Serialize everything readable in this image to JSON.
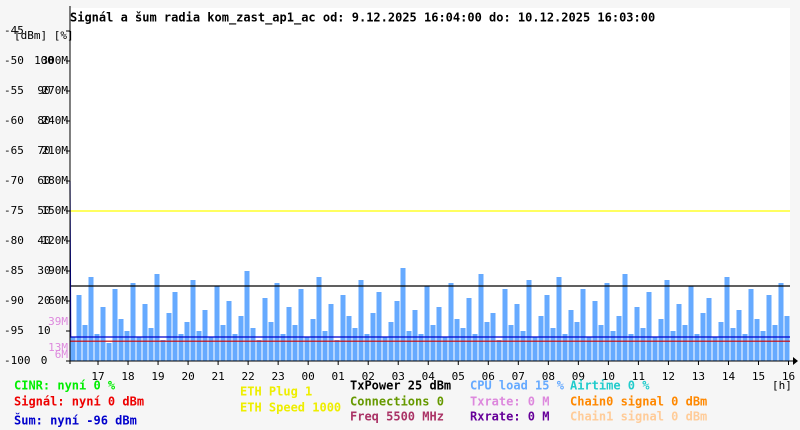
{
  "chart_data": {
    "type": "line",
    "title": "Signál a šum radia kom_zast_ap1_ac od: 9.12.2025 16:04:00 do: 10.12.2025 16:03:00",
    "y_axis_label": "[dBm] [%]",
    "x_axis_label": "[h]",
    "ylim": [
      -100,
      -45
    ],
    "yticks": [
      -100,
      -95,
      -90,
      -85,
      -80,
      -75,
      -70,
      -65,
      -60,
      -55,
      -50,
      -45
    ],
    "y2lim": [
      0,
      110
    ],
    "y2ticks": [
      0,
      10,
      20,
      30,
      40,
      50,
      60,
      70,
      80,
      90,
      100
    ],
    "y3lim": [
      0,
      330
    ],
    "y3ticks": [
      {
        "value": 60,
        "label": "60M"
      },
      {
        "value": 90,
        "label": "90M"
      },
      {
        "value": 120,
        "label": "120M"
      },
      {
        "value": 150,
        "label": "150M"
      },
      {
        "value": 180,
        "label": "180M"
      },
      {
        "value": 210,
        "label": "210M"
      },
      {
        "value": 240,
        "label": "240M"
      },
      {
        "value": 270,
        "label": "270M"
      },
      {
        "value": 300,
        "label": "300M"
      }
    ],
    "y3_markers": {
      "color": "#dd88dd",
      "ticks": [
        {
          "value": 39,
          "label": "39M"
        },
        {
          "value": 13,
          "label": "13M"
        },
        {
          "value": 6,
          "label": "6M"
        }
      ]
    },
    "xlim": [
      16.0667,
      40.05
    ],
    "xticks": [
      {
        "value": 17,
        "label": "17"
      },
      {
        "value": 18,
        "label": "18"
      },
      {
        "value": 19,
        "label": "19"
      },
      {
        "value": 20,
        "label": "20"
      },
      {
        "value": 21,
        "label": "21"
      },
      {
        "value": 22,
        "label": "22"
      },
      {
        "value": 23,
        "label": "23"
      },
      {
        "value": 24,
        "label": "00"
      },
      {
        "value": 25,
        "label": "01"
      },
      {
        "value": 26,
        "label": "02"
      },
      {
        "value": 27,
        "label": "03"
      },
      {
        "value": 28,
        "label": "04"
      },
      {
        "value": 29,
        "label": "05"
      },
      {
        "value": 30,
        "label": "06"
      },
      {
        "value": 31,
        "label": "07"
      },
      {
        "value": 32,
        "label": "08"
      },
      {
        "value": 33,
        "label": "09"
      },
      {
        "value": 34,
        "label": "10"
      },
      {
        "value": 35,
        "label": "11"
      },
      {
        "value": 36,
        "label": "12"
      },
      {
        "value": 37,
        "label": "13"
      },
      {
        "value": 38,
        "label": "14"
      },
      {
        "value": 39,
        "label": "15"
      },
      {
        "value": 40,
        "label": "16"
      }
    ],
    "cpu_bars": {
      "color": "#66aaff",
      "axis": "y2",
      "values": [
        8,
        22,
        12,
        28,
        9,
        18,
        6,
        24,
        14,
        10,
        26,
        8,
        19,
        11,
        29,
        7,
        16,
        23,
        9,
        13,
        27,
        10,
        17,
        8,
        25,
        12,
        20,
        9,
        15,
        30,
        11,
        7,
        21,
        13,
        26,
        9,
        18,
        12,
        24,
        8,
        14,
        28,
        10,
        19,
        7,
        22,
        15,
        11,
        27,
        9,
        16,
        23,
        8,
        13,
        20,
        31,
        10,
        17,
        9,
        25,
        12,
        18,
        8,
        26,
        14,
        11,
        21,
        9,
        29,
        13,
        16,
        7,
        24,
        12,
        19,
        10,
        27,
        8,
        15,
        22,
        11,
        28,
        9,
        17,
        13,
        24,
        8,
        20,
        12,
        26,
        10,
        15,
        29,
        9,
        18,
        11,
        23,
        8,
        14,
        27,
        10,
        19,
        12,
        25,
        9,
        16,
        21,
        8,
        13,
        28,
        11,
        17,
        9,
        24,
        14,
        10,
        22,
        12,
        26,
        15
      ]
    },
    "series": [
      {
        "color": "#ffff00",
        "axis": "y3",
        "x": [
          16.0667,
          40.05
        ],
        "values": [
          150,
          150
        ]
      },
      {
        "color": "#000000",
        "axis": "y2",
        "x": [
          16.0667,
          40.05
        ],
        "values": [
          25,
          25
        ]
      },
      {
        "color": "#cc0000",
        "x": [
          16.0667,
          40.05
        ],
        "values": [
          -96.7,
          -96.7
        ]
      },
      {
        "color": "#0000cc",
        "x": [
          16.0667,
          16.09,
          40.05
        ],
        "values": [
          -70,
          -96,
          -96
        ]
      }
    ],
    "legend": [
      {
        "text": "CINR: nyní 0 %",
        "color": "#00ee00"
      },
      {
        "text": "Signál: nyní 0 dBm",
        "color": "#ee0000"
      },
      {
        "text": "Šum: nyní -96 dBm",
        "color": "#0000cc"
      },
      {
        "text": "ETH Plug 1",
        "color": "#eeee00"
      },
      {
        "text": "ETH Speed 1000",
        "color": "#eeee00"
      },
      {
        "text": "TxPower 25 dBm",
        "color": "#000000"
      },
      {
        "text": "Connections 0",
        "color": "#669900"
      },
      {
        "text": "Freq 5500 MHz",
        "color": "#aa3366"
      },
      {
        "text": "CPU load 15 %",
        "color": "#66aaff"
      },
      {
        "text": "Txrate: 0 M",
        "color": "#dd88dd"
      },
      {
        "text": "Rxrate: 0 M",
        "color": "#660099"
      },
      {
        "text": "Airtime 0 %",
        "color": "#22cccc"
      },
      {
        "text": "Chain0 signal 0 dBm",
        "color": "#ff8800"
      },
      {
        "text": "Chain1 signal 0 dBm",
        "color": "#ffcc99"
      }
    ]
  }
}
